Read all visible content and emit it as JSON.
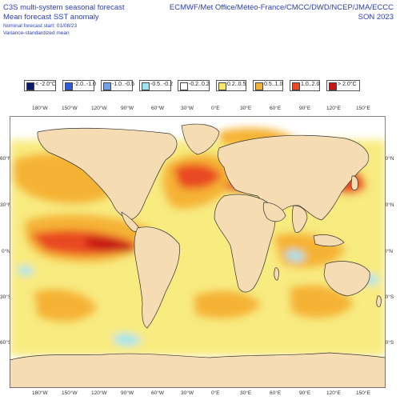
{
  "header": {
    "title": "C3S multi-system seasonal forecast",
    "subtitle": "Mean forecast SST anomaly",
    "start_note": "Nominal forecast start: 01/08/23",
    "method_note": "Variance-standardized mean",
    "centres": "ECMWF/Met Office/Météo-France/CMCC/DWD/NCEP/JMA/ECCC",
    "season": "SON 2023"
  },
  "legend": [
    {
      "label": "< -2.0°C",
      "color": "#0a1a6e"
    },
    {
      "label": "-2.0..-1.0",
      "color": "#2d5bd6"
    },
    {
      "label": "-1.0..-0.5",
      "color": "#6fa3e8"
    },
    {
      "label": "-0.5..-0.2",
      "color": "#9fe4f2"
    },
    {
      "label": "-0.2..0.2",
      "color": "#ffffff"
    },
    {
      "label": "0.2..0.5",
      "color": "#f7e86a"
    },
    {
      "label": "0.5..1.0",
      "color": "#f5b335"
    },
    {
      "label": "1.0..2.0",
      "color": "#e94a20"
    },
    {
      "label": "> 2.0°C",
      "color": "#c41414"
    }
  ],
  "axes": {
    "top_lon": [
      "180°W",
      "150°W",
      "120°W",
      "90°W",
      "60°W",
      "30°W",
      "0°E",
      "30°E",
      "60°E",
      "90°E",
      "120°E",
      "150°E"
    ],
    "bottom_lon": [
      "180°W",
      "150°W",
      "120°W",
      "90°W",
      "60°W",
      "30°W",
      "0°E",
      "30°E",
      "60°E",
      "90°E",
      "120°E",
      "150°E"
    ],
    "left_lat": [
      "60°N",
      "30°N",
      "0°N",
      "30°S",
      "60°S"
    ],
    "right_lat": [
      "60°N",
      "30°N",
      "0°N",
      "30°S",
      "60°S"
    ]
  },
  "colors": {
    "land": "#f5dcb2",
    "ocean_neutral": "#ffffff",
    "coast": "#333333"
  }
}
